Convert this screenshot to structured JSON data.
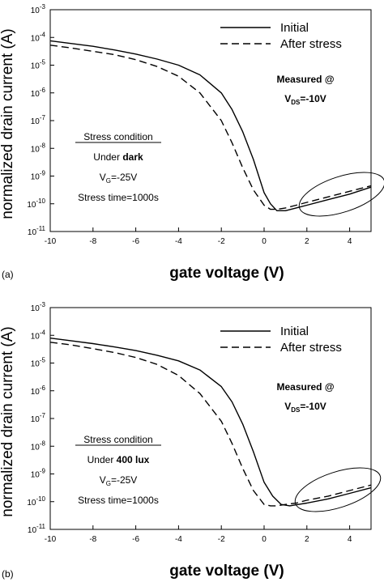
{
  "chart_data": [
    {
      "panel_label": "(a)",
      "type": "line",
      "xlabel": "gate voltage (V)",
      "ylabel": "normalized  drain current  (A)",
      "xlim": [
        -10,
        5
      ],
      "ylim_log10": [
        -11,
        -3
      ],
      "y_scale": "log",
      "x_ticks": [
        "-10",
        "-8",
        "-6",
        "-4",
        "-2",
        "0",
        "2",
        "4"
      ],
      "y_tick_exponents": [
        "-11",
        "-10",
        "-9",
        "-8",
        "-7",
        "-6",
        "-5",
        "-4",
        "-3"
      ],
      "y_tick_base": "10",
      "legend_placement": "top-right",
      "series": [
        {
          "name": "Initial",
          "style": "solid",
          "x": [
            -10,
            -9,
            -8,
            -7,
            -6,
            -5,
            -4,
            -3,
            -2,
            -1.5,
            -1,
            -0.5,
            0,
            0.3,
            0.6,
            1,
            1.5,
            2,
            3,
            4,
            5
          ],
          "y_log10": [
            -4.12,
            -4.22,
            -4.32,
            -4.45,
            -4.6,
            -4.78,
            -5.0,
            -5.35,
            -6.0,
            -6.6,
            -7.4,
            -8.4,
            -9.6,
            -10.0,
            -10.25,
            -10.25,
            -10.15,
            -10.05,
            -9.85,
            -9.65,
            -9.4
          ]
        },
        {
          "name": "After stress",
          "style": "dashed",
          "x": [
            -10,
            -9,
            -8,
            -7,
            -6,
            -5,
            -4,
            -3,
            -2,
            -1.5,
            -1,
            -0.5,
            0,
            0.3,
            0.6,
            1,
            1.5,
            2,
            3,
            4,
            5
          ],
          "y_log10": [
            -4.28,
            -4.38,
            -4.5,
            -4.62,
            -4.8,
            -5.05,
            -5.4,
            -6.0,
            -7.0,
            -7.8,
            -8.7,
            -9.5,
            -10.05,
            -10.2,
            -10.2,
            -10.15,
            -10.05,
            -9.95,
            -9.75,
            -9.55,
            -9.35
          ]
        }
      ],
      "annotations": {
        "measured_line1": "Measured @",
        "measured_v": "V",
        "measured_sub": "DS",
        "measured_val": "=-10V",
        "stress_title": "Stress condition",
        "stress_under": "Under ",
        "stress_cond": "dark",
        "stress_vg_v": "V",
        "stress_vg_sub": "G",
        "stress_vg_val": "=-25V",
        "stress_time": "Stress time=1000s"
      }
    },
    {
      "panel_label": "(b)",
      "type": "line",
      "xlabel": "gate voltage (V)",
      "ylabel": "normalized  drain current  (A)",
      "xlim": [
        -10,
        5
      ],
      "ylim_log10": [
        -11,
        -3
      ],
      "y_scale": "log",
      "x_ticks": [
        "-10",
        "-8",
        "-6",
        "-4",
        "-2",
        "0",
        "2",
        "4"
      ],
      "y_tick_exponents": [
        "-11",
        "-10",
        "-9",
        "-8",
        "-7",
        "-6",
        "-5",
        "-4",
        "-3"
      ],
      "y_tick_base": "10",
      "legend_placement": "top-right",
      "series": [
        {
          "name": "Initial",
          "style": "solid",
          "x": [
            -10,
            -9,
            -8,
            -7,
            -6,
            -5,
            -4,
            -3,
            -2,
            -1.5,
            -1,
            -0.5,
            0,
            0.4,
            0.8,
            1.2,
            1.6,
            2,
            3,
            4,
            5
          ],
          "y_log10": [
            -4.1,
            -4.2,
            -4.3,
            -4.42,
            -4.55,
            -4.72,
            -4.92,
            -5.25,
            -5.85,
            -6.4,
            -7.2,
            -8.2,
            -9.3,
            -9.8,
            -10.1,
            -10.15,
            -10.1,
            -10.05,
            -9.9,
            -9.7,
            -9.5
          ]
        },
        {
          "name": "After stress",
          "style": "dashed",
          "x": [
            -10,
            -9,
            -8,
            -7,
            -6,
            -5,
            -4,
            -3,
            -2,
            -1.5,
            -1,
            -0.5,
            0,
            0.3,
            0.6,
            1,
            1.5,
            2,
            3,
            4,
            5
          ],
          "y_log10": [
            -4.25,
            -4.35,
            -4.48,
            -4.62,
            -4.8,
            -5.05,
            -5.45,
            -6.1,
            -7.1,
            -7.9,
            -8.8,
            -9.6,
            -10.1,
            -10.15,
            -10.15,
            -10.1,
            -10.05,
            -9.95,
            -9.8,
            -9.6,
            -9.4
          ]
        }
      ],
      "annotations": {
        "measured_line1": "Measured @",
        "measured_v": "V",
        "measured_sub": "DS",
        "measured_val": "=-10V",
        "stress_title": "Stress condition",
        "stress_under": "Under ",
        "stress_cond": "400 lux",
        "stress_vg_v": "V",
        "stress_vg_sub": "G",
        "stress_vg_val": "=-25V",
        "stress_time": "Stress time=1000s"
      }
    }
  ]
}
